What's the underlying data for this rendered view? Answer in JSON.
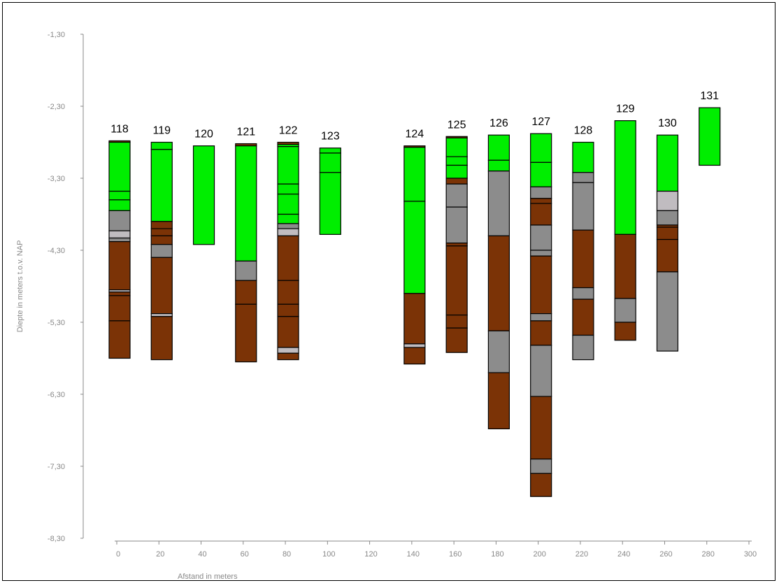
{
  "chart_data": {
    "type": "column-profile",
    "xlabel": "Afstand in meters",
    "ylabel": "Diepte in meters t.o.v. NAP",
    "x_ticks": [
      "0",
      "20",
      "40",
      "60",
      "80",
      "100",
      "120",
      "140",
      "160",
      "180",
      "200",
      "220",
      "240",
      "260",
      "280",
      "300"
    ],
    "y_ticks": [
      "-1,30",
      "-2,30",
      "-3,30",
      "-4,30",
      "-5,30",
      "-6,30",
      "-7,30",
      "-8,30"
    ],
    "ylim": [
      -8.3,
      -1.3
    ],
    "colors": {
      "green": "#00ee00",
      "brown": "#7b3306",
      "gray": "#8c8c8c",
      "lightgray": "#c0bcc0"
    },
    "boreholes": [
      {
        "label": "118",
        "x": 0,
        "layers": [
          {
            "top": -2.78,
            "bottom": -2.8,
            "color": "brown"
          },
          {
            "top": -2.8,
            "bottom": -3.48,
            "color": "green"
          },
          {
            "top": -3.48,
            "bottom": -3.6,
            "color": "green"
          },
          {
            "top": -3.6,
            "bottom": -3.75,
            "color": "green"
          },
          {
            "top": -3.75,
            "bottom": -4.03,
            "color": "gray"
          },
          {
            "top": -4.03,
            "bottom": -4.13,
            "color": "lightgray"
          },
          {
            "top": -4.13,
            "bottom": -4.18,
            "color": "gray"
          },
          {
            "top": -4.18,
            "bottom": -4.85,
            "color": "brown"
          },
          {
            "top": -4.85,
            "bottom": -4.88,
            "color": "lightgray"
          },
          {
            "top": -4.88,
            "bottom": -4.93,
            "color": "brown"
          },
          {
            "top": -4.93,
            "bottom": -5.28,
            "color": "brown"
          },
          {
            "top": -5.28,
            "bottom": -5.8,
            "color": "brown"
          }
        ]
      },
      {
        "label": "119",
        "x": 20,
        "layers": [
          {
            "top": -2.8,
            "bottom": -2.9,
            "color": "green"
          },
          {
            "top": -2.9,
            "bottom": -3.9,
            "color": "green"
          },
          {
            "top": -3.9,
            "bottom": -4.0,
            "color": "brown"
          },
          {
            "top": -4.0,
            "bottom": -4.1,
            "color": "brown"
          },
          {
            "top": -4.1,
            "bottom": -4.22,
            "color": "brown"
          },
          {
            "top": -4.22,
            "bottom": -4.4,
            "color": "gray"
          },
          {
            "top": -4.4,
            "bottom": -5.18,
            "color": "brown"
          },
          {
            "top": -5.18,
            "bottom": -5.22,
            "color": "lightgray"
          },
          {
            "top": -5.22,
            "bottom": -5.82,
            "color": "brown"
          }
        ]
      },
      {
        "label": "120",
        "x": 40,
        "layers": [
          {
            "top": -2.85,
            "bottom": -4.22,
            "color": "green"
          }
        ]
      },
      {
        "label": "121",
        "x": 60,
        "layers": [
          {
            "top": -2.82,
            "bottom": -2.85,
            "color": "brown"
          },
          {
            "top": -2.85,
            "bottom": -4.45,
            "color": "green"
          },
          {
            "top": -4.45,
            "bottom": -4.72,
            "color": "gray"
          },
          {
            "top": -4.72,
            "bottom": -5.05,
            "color": "brown"
          },
          {
            "top": -5.05,
            "bottom": -5.85,
            "color": "brown"
          }
        ]
      },
      {
        "label": "122",
        "x": 80,
        "layers": [
          {
            "top": -2.8,
            "bottom": -2.83,
            "color": "brown"
          },
          {
            "top": -2.83,
            "bottom": -2.86,
            "color": "green"
          },
          {
            "top": -2.86,
            "bottom": -3.38,
            "color": "green"
          },
          {
            "top": -3.38,
            "bottom": -3.52,
            "color": "green"
          },
          {
            "top": -3.52,
            "bottom": -3.8,
            "color": "green"
          },
          {
            "top": -3.8,
            "bottom": -3.93,
            "color": "green"
          },
          {
            "top": -3.93,
            "bottom": -4.0,
            "color": "gray"
          },
          {
            "top": -4.0,
            "bottom": -4.1,
            "color": "lightgray"
          },
          {
            "top": -4.1,
            "bottom": -4.72,
            "color": "brown"
          },
          {
            "top": -4.72,
            "bottom": -5.05,
            "color": "brown"
          },
          {
            "top": -5.05,
            "bottom": -5.22,
            "color": "brown"
          },
          {
            "top": -5.22,
            "bottom": -5.65,
            "color": "brown"
          },
          {
            "top": -5.65,
            "bottom": -5.73,
            "color": "lightgray"
          },
          {
            "top": -5.73,
            "bottom": -5.82,
            "color": "brown"
          }
        ]
      },
      {
        "label": "123",
        "x": 100,
        "layers": [
          {
            "top": -2.88,
            "bottom": -2.95,
            "color": "green"
          },
          {
            "top": -2.95,
            "bottom": -3.22,
            "color": "green"
          },
          {
            "top": -3.22,
            "bottom": -4.08,
            "color": "green"
          }
        ]
      },
      {
        "label": "124",
        "x": 140,
        "layers": [
          {
            "top": -2.85,
            "bottom": -2.87,
            "color": "brown"
          },
          {
            "top": -2.87,
            "bottom": -3.62,
            "color": "green"
          },
          {
            "top": -3.62,
            "bottom": -4.9,
            "color": "green"
          },
          {
            "top": -4.9,
            "bottom": -5.6,
            "color": "brown"
          },
          {
            "top": -5.6,
            "bottom": -5.65,
            "color": "lightgray"
          },
          {
            "top": -5.65,
            "bottom": -5.88,
            "color": "brown"
          }
        ]
      },
      {
        "label": "125",
        "x": 160,
        "layers": [
          {
            "top": -2.72,
            "bottom": -2.74,
            "color": "brown"
          },
          {
            "top": -2.74,
            "bottom": -3.0,
            "color": "green"
          },
          {
            "top": -3.0,
            "bottom": -3.12,
            "color": "green"
          },
          {
            "top": -3.12,
            "bottom": -3.3,
            "color": "green"
          },
          {
            "top": -3.3,
            "bottom": -3.38,
            "color": "brown"
          },
          {
            "top": -3.38,
            "bottom": -3.7,
            "color": "gray"
          },
          {
            "top": -3.7,
            "bottom": -4.2,
            "color": "gray"
          },
          {
            "top": -4.2,
            "bottom": -4.24,
            "color": "brown"
          },
          {
            "top": -4.24,
            "bottom": -5.2,
            "color": "brown"
          },
          {
            "top": -5.2,
            "bottom": -5.38,
            "color": "brown"
          },
          {
            "top": -5.38,
            "bottom": -5.72,
            "color": "brown"
          }
        ]
      },
      {
        "label": "126",
        "x": 180,
        "layers": [
          {
            "top": -2.7,
            "bottom": -3.05,
            "color": "green"
          },
          {
            "top": -3.05,
            "bottom": -3.2,
            "color": "green"
          },
          {
            "top": -3.2,
            "bottom": -4.1,
            "color": "gray"
          },
          {
            "top": -4.1,
            "bottom": -5.42,
            "color": "brown"
          },
          {
            "top": -5.42,
            "bottom": -6.0,
            "color": "gray"
          },
          {
            "top": -6.0,
            "bottom": -6.78,
            "color": "brown"
          }
        ]
      },
      {
        "label": "127",
        "x": 200,
        "layers": [
          {
            "top": -2.68,
            "bottom": -3.08,
            "color": "green"
          },
          {
            "top": -3.08,
            "bottom": -3.42,
            "color": "green"
          },
          {
            "top": -3.42,
            "bottom": -3.58,
            "color": "gray"
          },
          {
            "top": -3.58,
            "bottom": -3.65,
            "color": "brown"
          },
          {
            "top": -3.65,
            "bottom": -3.95,
            "color": "brown"
          },
          {
            "top": -3.95,
            "bottom": -4.3,
            "color": "gray"
          },
          {
            "top": -4.3,
            "bottom": -4.38,
            "color": "gray"
          },
          {
            "top": -4.38,
            "bottom": -5.18,
            "color": "brown"
          },
          {
            "top": -5.18,
            "bottom": -5.28,
            "color": "gray"
          },
          {
            "top": -5.28,
            "bottom": -5.62,
            "color": "brown"
          },
          {
            "top": -5.62,
            "bottom": -6.33,
            "color": "gray"
          },
          {
            "top": -6.33,
            "bottom": -7.2,
            "color": "brown"
          },
          {
            "top": -7.2,
            "bottom": -7.4,
            "color": "gray"
          },
          {
            "top": -7.4,
            "bottom": -7.72,
            "color": "brown"
          }
        ]
      },
      {
        "label": "128",
        "x": 220,
        "layers": [
          {
            "top": -2.8,
            "bottom": -3.22,
            "color": "green"
          },
          {
            "top": -3.22,
            "bottom": -3.36,
            "color": "gray"
          },
          {
            "top": -3.36,
            "bottom": -4.02,
            "color": "gray"
          },
          {
            "top": -4.02,
            "bottom": -4.82,
            "color": "brown"
          },
          {
            "top": -4.82,
            "bottom": -4.98,
            "color": "gray"
          },
          {
            "top": -4.98,
            "bottom": -5.48,
            "color": "brown"
          },
          {
            "top": -5.48,
            "bottom": -5.82,
            "color": "gray"
          }
        ]
      },
      {
        "label": "129",
        "x": 240,
        "layers": [
          {
            "top": -2.5,
            "bottom": -4.08,
            "color": "green"
          },
          {
            "top": -4.08,
            "bottom": -4.97,
            "color": "brown"
          },
          {
            "top": -4.97,
            "bottom": -5.3,
            "color": "gray"
          },
          {
            "top": -5.3,
            "bottom": -5.55,
            "color": "brown"
          }
        ]
      },
      {
        "label": "130",
        "x": 260,
        "layers": [
          {
            "top": -2.7,
            "bottom": -3.48,
            "color": "green"
          },
          {
            "top": -3.48,
            "bottom": -3.75,
            "color": "lightgray"
          },
          {
            "top": -3.75,
            "bottom": -3.95,
            "color": "gray"
          },
          {
            "top": -3.95,
            "bottom": -3.98,
            "color": "brown"
          },
          {
            "top": -3.98,
            "bottom": -4.15,
            "color": "brown"
          },
          {
            "top": -4.15,
            "bottom": -4.6,
            "color": "brown"
          },
          {
            "top": -4.6,
            "bottom": -5.7,
            "color": "gray"
          }
        ]
      },
      {
        "label": "131",
        "x": 280,
        "layers": [
          {
            "top": -2.32,
            "bottom": -3.12,
            "color": "green"
          }
        ]
      }
    ]
  }
}
